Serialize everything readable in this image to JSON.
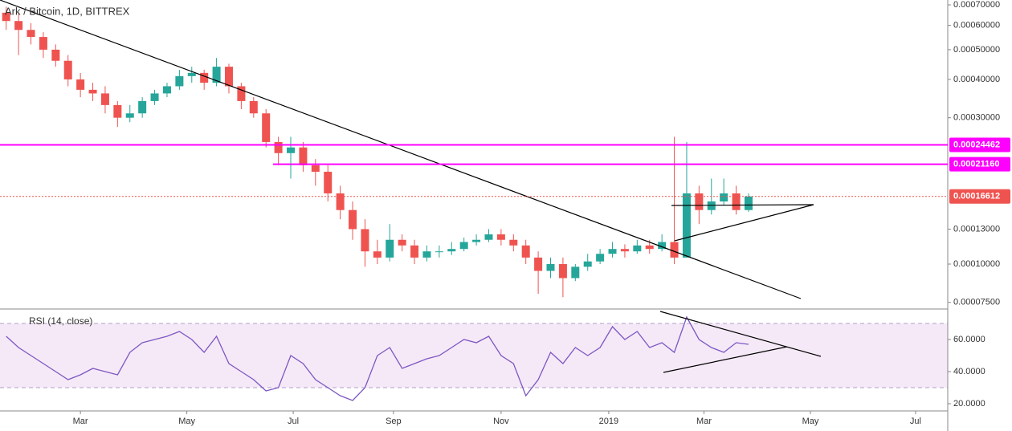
{
  "chart_data": [
    {
      "type": "candlestick",
      "title": "Ark / Bitcoin, 1D, BITTREX",
      "log_scale": true,
      "up_color": "#26a69a",
      "down_color": "#ef5350",
      "open": [
        0.00066,
        0.00062,
        0.00058,
        0.00055,
        0.0005,
        0.00046,
        0.0004,
        0.00037,
        0.00036,
        0.00033,
        0.0003,
        0.00031,
        0.00034,
        0.00036,
        0.00038,
        0.00041,
        0.00042,
        0.00039,
        0.00044,
        0.00038,
        0.00034,
        0.00031,
        0.00025,
        0.00023,
        0.00024,
        0.00021,
        0.0002,
        0.00017,
        0.00015,
        0.00013,
        0.00011,
        0.000105,
        0.00012,
        0.000115,
        0.000105,
        0.00011,
        0.00011,
        0.000112,
        0.000118,
        0.00012,
        0.000125,
        0.00012,
        0.000115,
        0.000105,
        9.5e-05,
        0.0001,
        9e-05,
        9.8e-05,
        0.000102,
        0.000108,
        0.000112,
        0.00011,
        0.000115,
        0.000112,
        0.000118,
        0.000105,
        0.00017,
        0.00015,
        0.00016,
        0.00017,
        0.00015
      ],
      "high": [
        0.00069,
        0.00066,
        0.00061,
        0.00057,
        0.00052,
        0.00048,
        0.00042,
        0.00039,
        0.00038,
        0.00034,
        0.00033,
        0.00035,
        0.00037,
        0.00039,
        0.00043,
        0.00044,
        0.00043,
        0.00047,
        0.00045,
        0.00039,
        0.00035,
        0.00032,
        0.00026,
        0.00026,
        0.00025,
        0.00022,
        0.00021,
        0.00018,
        0.00016,
        0.00014,
        0.00012,
        0.000135,
        0.000125,
        0.00012,
        0.000115,
        0.000115,
        0.000118,
        0.000122,
        0.000125,
        0.00013,
        0.00013,
        0.000125,
        0.00012,
        0.00011,
        0.000105,
        0.000105,
        0.0001,
        0.000108,
        0.000112,
        0.000118,
        0.000116,
        0.00012,
        0.00012,
        0.000125,
        0.00026,
        0.00025,
        0.00018,
        0.00019,
        0.00019,
        0.00018,
        0.00017
      ],
      "low": [
        0.00058,
        0.00048,
        0.00052,
        0.00047,
        0.00044,
        0.00038,
        0.00035,
        0.00034,
        0.00031,
        0.00028,
        0.00029,
        0.0003,
        0.00033,
        0.00035,
        0.00037,
        0.00039,
        0.00037,
        0.00038,
        0.00036,
        0.00032,
        0.0003,
        0.00024,
        0.00021,
        0.00019,
        0.0002,
        0.00018,
        0.00016,
        0.00014,
        0.00012,
        9.8e-05,
        0.0001,
        0.000102,
        0.00011,
        0.0001,
        0.000102,
        0.000105,
        0.000107,
        0.00011,
        0.000115,
        0.000118,
        0.000115,
        0.00011,
        0.0001,
        8e-05,
        9e-05,
        7.8e-05,
        8.8e-05,
        9.5e-05,
        0.0001,
        0.000105,
        0.000105,
        0.000108,
        0.000108,
        0.00011,
        0.0001,
        0.000105,
        0.000135,
        0.000145,
        0.000155,
        0.000145,
        0.000148
      ],
      "close": [
        0.00062,
        0.00058,
        0.00055,
        0.0005,
        0.00046,
        0.0004,
        0.00037,
        0.00036,
        0.00033,
        0.0003,
        0.00031,
        0.00034,
        0.00036,
        0.00038,
        0.00041,
        0.00042,
        0.00039,
        0.00044,
        0.00038,
        0.00034,
        0.00031,
        0.00025,
        0.00023,
        0.00024,
        0.00021,
        0.0002,
        0.00017,
        0.00015,
        0.00013,
        0.00011,
        0.000105,
        0.00012,
        0.000115,
        0.000105,
        0.00011,
        0.00011,
        0.000112,
        0.000118,
        0.00012,
        0.000125,
        0.00012,
        0.000115,
        0.000105,
        9.5e-05,
        0.0001,
        9e-05,
        9.8e-05,
        0.000102,
        0.000108,
        0.000112,
        0.00011,
        0.000115,
        0.000112,
        0.000118,
        0.000105,
        0.00017,
        0.00015,
        0.00016,
        0.00017,
        0.00015,
        0.00016612
      ],
      "xlim": [
        0,
        76.6
      ],
      "xticks": [
        {
          "value": 6.5,
          "label": "Mar"
        },
        {
          "value": 15.1,
          "label": "May"
        },
        {
          "value": 23.7,
          "label": "Jul"
        },
        {
          "value": 31.8,
          "label": "Sep"
        },
        {
          "value": 40.5,
          "label": "Nov"
        },
        {
          "value": 49.2,
          "label": "2019"
        },
        {
          "value": 56.9,
          "label": "Mar"
        },
        {
          "value": 65.5,
          "label": "May"
        },
        {
          "value": 74.0,
          "label": "Jul"
        }
      ],
      "ylim": [
        7.18e-05,
        0.000726
      ],
      "yticks": [
        {
          "value": 7.5e-05,
          "label": "0.00007500"
        },
        {
          "value": 0.0001,
          "label": "0.00010000"
        },
        {
          "value": 0.00013,
          "label": "0.00013000"
        },
        {
          "value": 0.0003,
          "label": "0.00030000"
        },
        {
          "value": 0.0004,
          "label": "0.00040000"
        },
        {
          "value": 0.0005,
          "label": "0.00050000"
        },
        {
          "value": 0.0006,
          "label": "0.00060000"
        },
        {
          "value": 0.0007,
          "label": "0.00070000"
        }
      ],
      "levels": [
        0.00024462,
        {
          "value": 0.0002116,
          "label": "0.00021160"
        },
        {
          "value": 0.00016612,
          "label": "0.00016612"
        }
      ],
      "level_colors": [
        "#ff00ff",
        "#ff00ff",
        "#ef5350"
      ]
    },
    {
      "type": "line",
      "title": "RSI (14, close)",
      "color": "#7e57c2",
      "values": [
        62,
        55,
        50,
        45,
        40,
        35,
        38,
        42,
        40,
        38,
        52,
        58,
        60,
        62,
        65,
        60,
        52,
        62,
        45,
        40,
        35,
        28,
        30,
        50,
        45,
        35,
        30,
        25,
        22,
        30,
        50,
        55,
        42,
        45,
        48,
        50,
        55,
        60,
        58,
        62,
        50,
        45,
        25,
        35,
        52,
        45,
        55,
        50,
        55,
        68,
        60,
        65,
        55,
        58,
        52,
        74,
        60,
        55,
        52,
        58,
        57
      ],
      "ylim": [
        15.5,
        78.5
      ],
      "yticks": [
        {
          "value": 20,
          "label": "20.0000"
        },
        {
          "value": 40,
          "label": "40.0000"
        },
        {
          "value": 60,
          "label": "60.0000"
        }
      ],
      "bands": [
        30,
        70
      ]
    }
  ]
}
